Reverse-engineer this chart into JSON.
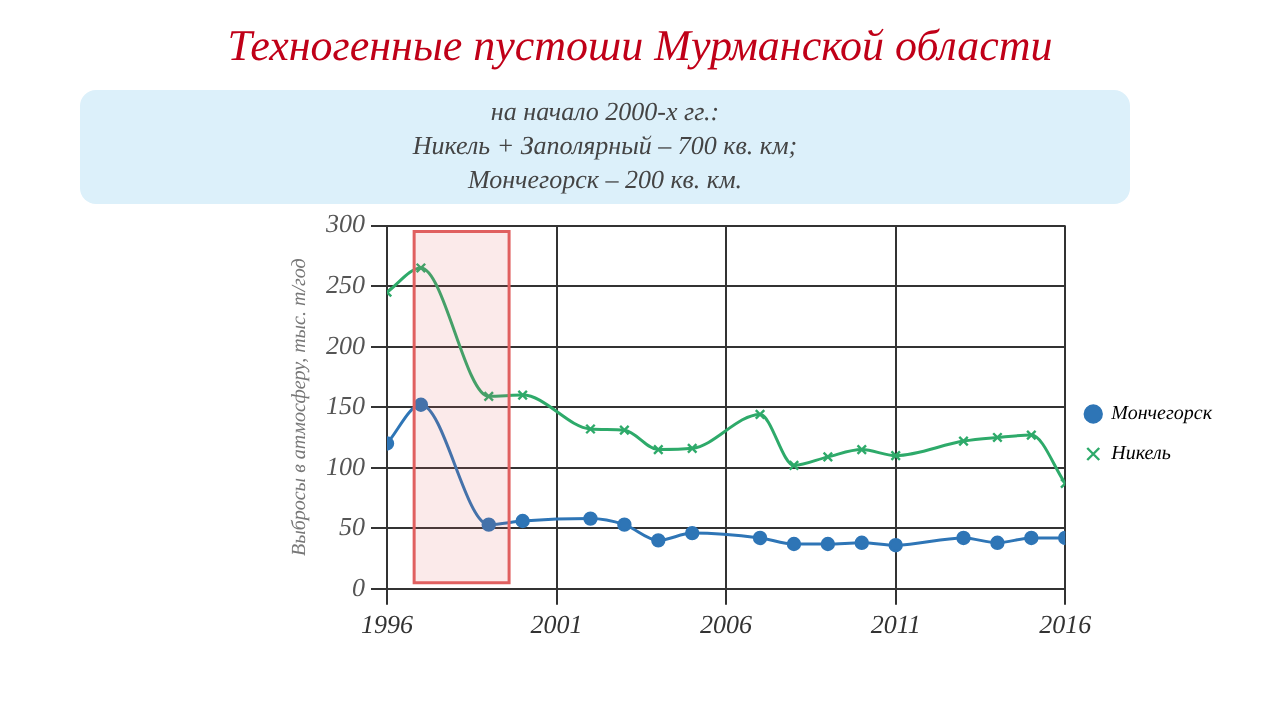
{
  "chart_data": {
    "type": "line",
    "title": "Техногенные пустоши Мурманской области",
    "subtitle": "на начало 2000-х гг.:\nНикель + Заполярный – 700 кв. км;\nМончегорск – 200 кв. км.",
    "ylabel": "Выбросы в атмосферу, тыс. т/год",
    "xlim": [
      1996,
      2016
    ],
    "xticks": [
      1996,
      2001,
      2006,
      2011,
      2016
    ],
    "ylim": [
      0,
      300
    ],
    "yticks": [
      0,
      50,
      100,
      150,
      200,
      250,
      300
    ],
    "grid": true,
    "legend": "right",
    "bands": [
      {
        "axis": "x",
        "from": 1996.8,
        "to": 1999.6,
        "color": "#e06060"
      }
    ],
    "series": [
      {
        "name": "Мончегорск",
        "color": "#2e75b6",
        "marker": "circle",
        "x": [
          1996,
          1997,
          1999,
          2000,
          2002,
          2003,
          2004,
          2005,
          2007,
          2008,
          2009,
          2010,
          2011,
          2013,
          2014,
          2015,
          2016
        ],
        "values": [
          120,
          152,
          53,
          56,
          58,
          53,
          40,
          46,
          42,
          37,
          37,
          38,
          36,
          42,
          38,
          42,
          42
        ]
      },
      {
        "name": "Никель",
        "color": "#2eaa6a",
        "marker": "cross",
        "x": [
          1996,
          1997,
          1999,
          2000,
          2002,
          2003,
          2004,
          2005,
          2007,
          2008,
          2009,
          2010,
          2011,
          2013,
          2014,
          2015,
          2016
        ],
        "values": [
          245,
          265,
          159,
          160,
          132,
          131,
          115,
          116,
          144,
          102,
          109,
          115,
          110,
          122,
          125,
          127,
          87
        ]
      }
    ]
  }
}
